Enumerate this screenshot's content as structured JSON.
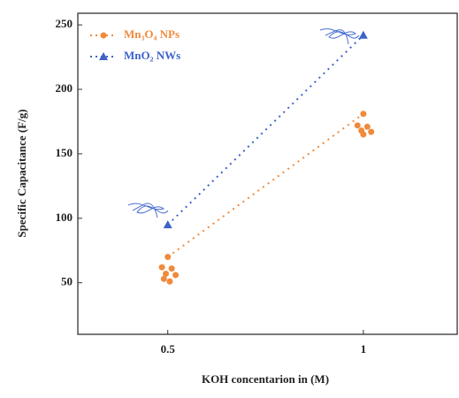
{
  "chart_data": {
    "type": "line",
    "x_label": "KOH concentarion in (M)",
    "y_label": "Specific Capacitance (F/g)",
    "xlim": [
      0.27,
      1.24
    ],
    "xticks": [
      0.5,
      1
    ],
    "ylim": [
      10,
      259
    ],
    "yticks": [
      50,
      100,
      150,
      200,
      250
    ],
    "legend": "top-left",
    "series": [
      {
        "name": "Mn₃O₄ NPs",
        "color": "#f08a3c",
        "marker": "circle",
        "x": [
          0.5,
          1
        ],
        "values": [
          70,
          181
        ]
      },
      {
        "name": "MnO₂ NWs",
        "color": "#3d63c9",
        "marker": "triangle",
        "x": [
          0.5,
          1
        ],
        "values": [
          95,
          242
        ]
      },
      {
        "color": "#f08a3c",
        "marker": "circle",
        "mode": "markers",
        "x": [
          0.485,
          0.51,
          0.495,
          0.52,
          0.49,
          0.505,
          0.985,
          1.01,
          0.995,
          1.02,
          1.0
        ],
        "values": [
          62,
          61,
          57,
          56,
          53,
          51,
          172,
          171,
          168,
          167,
          165
        ]
      }
    ]
  }
}
